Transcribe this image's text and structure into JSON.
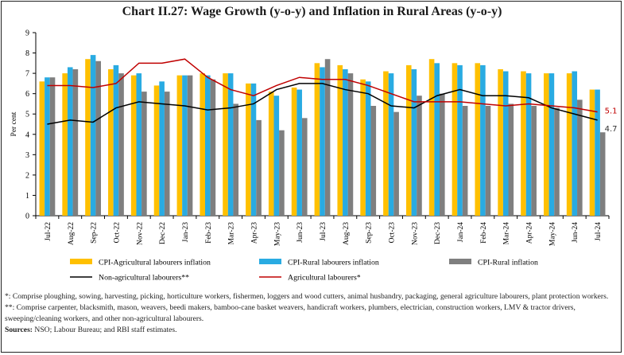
{
  "chart_data": {
    "type": "bar",
    "title": "Chart II.27: Wage Growth (y-o-y) and Inflation in Rural Areas (y-o-y)",
    "ylabel": "Per cent",
    "xlabel": "",
    "ylim": [
      0,
      9
    ],
    "yticks": [
      "0",
      "1",
      "2",
      "3",
      "4",
      "5",
      "6",
      "7",
      "8",
      "9"
    ],
    "grid": false,
    "legend_placement": "bottom",
    "categories": [
      "Jul-22",
      "Aug-22",
      "Sep-22",
      "Oct-22",
      "Nov-22",
      "Dec-22",
      "Jan-23",
      "Feb-23",
      "Mar-23",
      "Apr-23",
      "May-23",
      "Jun-23",
      "Jul-23",
      "Aug-23",
      "Sep-23",
      "Oct-23",
      "Nov-23",
      "Dec-23",
      "Jan-24",
      "Feb-24",
      "Mar-24",
      "Apr-24",
      "May-24",
      "Jun-24",
      "Jul-24"
    ],
    "bar_series": [
      {
        "name": "CPI-Agricultural labourers inflation",
        "color": "#FFC000",
        "values": [
          6.6,
          7.0,
          7.7,
          7.2,
          6.9,
          6.4,
          6.9,
          7.0,
          7.0,
          6.5,
          6.1,
          6.3,
          7.5,
          7.4,
          6.7,
          7.1,
          7.4,
          7.7,
          7.5,
          7.5,
          7.2,
          7.1,
          7.0,
          7.0,
          6.2
        ]
      },
      {
        "name": "CPI-Rural labourers inflation",
        "color": "#29ABE2",
        "values": [
          6.8,
          7.3,
          7.9,
          7.4,
          7.0,
          6.6,
          6.9,
          6.9,
          7.0,
          6.5,
          5.9,
          6.2,
          7.3,
          7.2,
          6.6,
          7.0,
          7.2,
          7.5,
          7.4,
          7.4,
          7.1,
          7.0,
          7.0,
          7.1,
          6.2
        ]
      },
      {
        "name": "CPI-Rural inflation",
        "color": "#7F7F7F",
        "values": [
          6.8,
          7.2,
          7.6,
          7.0,
          6.1,
          6.1,
          6.9,
          6.7,
          5.5,
          4.7,
          4.2,
          4.8,
          7.7,
          7.0,
          5.4,
          5.1,
          5.9,
          6.0,
          5.4,
          5.4,
          5.5,
          5.4,
          5.3,
          5.7,
          4.1
        ]
      }
    ],
    "line_series": [
      {
        "name": "Non-agricultural labourers**",
        "color": "#000000",
        "values": [
          4.5,
          4.7,
          4.6,
          5.3,
          5.6,
          5.5,
          5.4,
          5.2,
          5.3,
          5.5,
          6.2,
          6.5,
          6.5,
          6.2,
          6.0,
          5.4,
          5.3,
          5.9,
          6.2,
          5.9,
          5.9,
          5.8,
          5.3,
          5.0,
          4.7
        ],
        "end_label": "4.7"
      },
      {
        "name": "Agricultural labourers*",
        "color": "#C00000",
        "values": [
          6.4,
          6.4,
          6.3,
          6.5,
          7.5,
          7.5,
          7.7,
          6.8,
          6.2,
          5.9,
          6.4,
          6.8,
          6.7,
          6.7,
          6.4,
          6.0,
          5.6,
          5.6,
          5.6,
          5.5,
          5.4,
          5.5,
          5.4,
          5.3,
          5.1
        ],
        "end_label": "5.1"
      }
    ]
  },
  "footnotes": {
    "note1": "*: Comprise ploughing, sowing, harvesting, picking, horticulture workers, fishermen, loggers and wood cutters, animal husbandry, packaging, general agriculture labourers, plant protection workers.",
    "note2": "**: Comprise carpenter, blacksmith, mason, weavers, beedi makers, bamboo-cane basket weavers, handicraft workers, plumbers, electrician, construction workers, LMV & tractor drivers, sweeping/cleaning workers, and other non-agricultural labourers.",
    "sources_label": "Sources:",
    "sources_text": " NSO; Labour Bureau; and RBI staff estimates."
  }
}
